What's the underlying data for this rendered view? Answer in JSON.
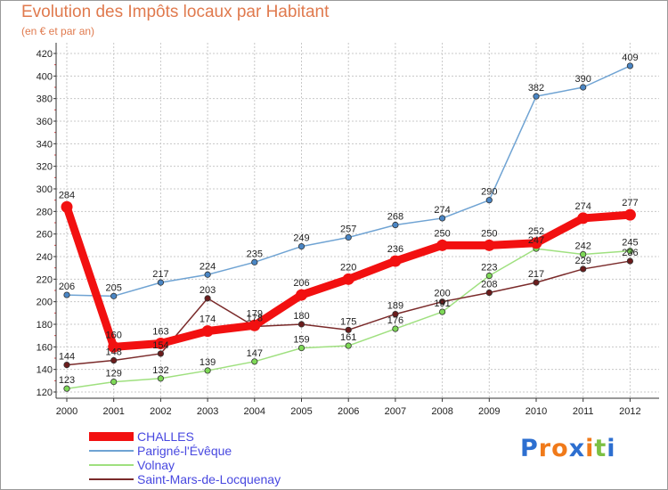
{
  "chart_data": {
    "type": "line",
    "title": "Evolution des Impôts locaux par Habitant",
    "subtitle": "(en € et par an)",
    "xlabel": "",
    "ylabel": "",
    "x": [
      "2000",
      "2001",
      "2002",
      "2003",
      "2004",
      "2005",
      "2006",
      "2007",
      "2008",
      "2009",
      "2010",
      "2011",
      "2012"
    ],
    "ylim": [
      120,
      420
    ],
    "yticks": [
      "120",
      "140",
      "160",
      "180",
      "200",
      "220",
      "240",
      "260",
      "280",
      "300",
      "320",
      "340",
      "360",
      "380",
      "400",
      "420"
    ],
    "grid": true,
    "legend_position": "bottom-left",
    "series": [
      {
        "name": "CHALLES",
        "values": [
          284,
          160,
          163,
          174,
          179,
          206,
          220,
          236,
          250,
          250,
          252,
          274,
          277
        ],
        "color": "#f21010",
        "marker": "#f21010"
      },
      {
        "name": "Parigné-l'Évêque",
        "values": [
          206,
          205,
          217,
          224,
          235,
          249,
          257,
          268,
          274,
          290,
          382,
          390,
          409
        ],
        "color": "#6fa3d3",
        "marker": "#4a86c5"
      },
      {
        "name": "Volnay",
        "values": [
          123,
          129,
          132,
          139,
          147,
          159,
          161,
          176,
          191,
          223,
          247,
          242,
          245
        ],
        "color": "#9fe07f",
        "marker": "#7ed957"
      },
      {
        "name": "Saint-Mars-de-Locquenay",
        "values": [
          144,
          148,
          154,
          203,
          178,
          180,
          175,
          189,
          200,
          208,
          217,
          229,
          236
        ],
        "color": "#7a2a2a",
        "marker": "#6b1c1c"
      }
    ]
  },
  "brand": {
    "letters": [
      "P",
      "r",
      "o",
      "x",
      "i",
      "t",
      "i"
    ],
    "colors": [
      "#2d6fd0",
      "#f07a1a",
      "#f07a1a",
      "#2d6fd0",
      "#f07a1a",
      "#7cc043",
      "#2d6fd0"
    ]
  }
}
